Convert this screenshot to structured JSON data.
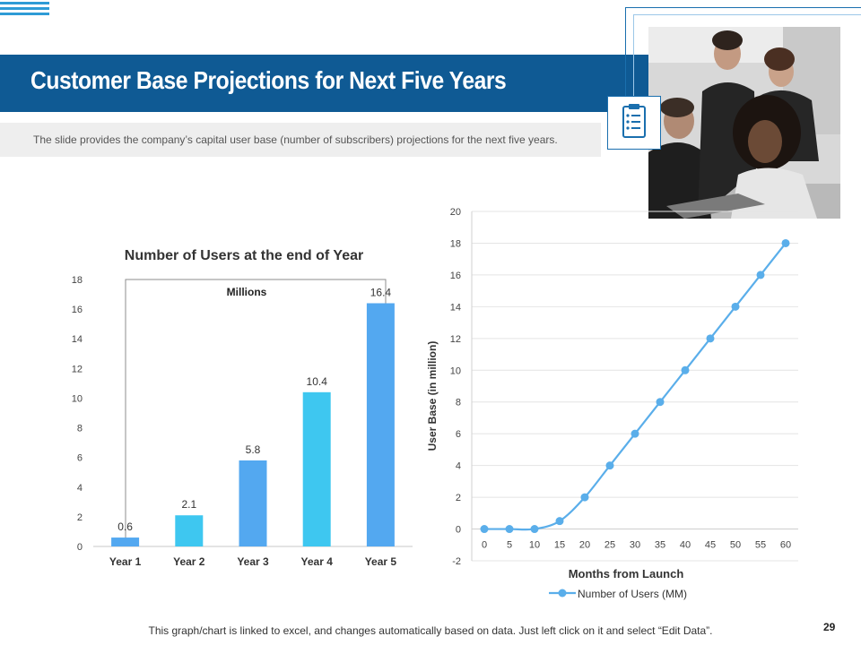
{
  "slide": {
    "title": "Customer Base Projections for Next Five Years",
    "subtitle": "The slide provides the company’s capital user base (number  of subscribers)  projections for the next five years.",
    "footer": "This graph/chart is linked to excel, and changes automatically based on data. Just left click on it and select “Edit Data”.",
    "page_number": "29",
    "icons": {
      "clipboard": "clipboard-icon"
    },
    "colors": {
      "title_bar": "#0f5a94",
      "accent": "#2e9bd6",
      "bar_blue": "#53a8f0",
      "bar_cyan": "#3ec7f0",
      "line": "#5aaeea"
    }
  },
  "chart_data": [
    {
      "type": "bar",
      "title": "Number of Users at the end of Year",
      "annotation": "Millions",
      "categories": [
        "Year 1",
        "Year 2",
        "Year 3",
        "Year 4",
        "Year 5"
      ],
      "values": [
        0.6,
        2.1,
        5.8,
        10.4,
        16.4
      ],
      "data_labels": [
        "0.6",
        "2.1",
        "5.8",
        "10.4",
        "16.4"
      ],
      "ylim": [
        0,
        18
      ],
      "yticks": [
        "0",
        "2",
        "4",
        "6",
        "8",
        "10",
        "12",
        "14",
        "16",
        "18"
      ],
      "grid": false,
      "bar_colors": [
        "#53a8f0",
        "#3ec7f0",
        "#53a8f0",
        "#3ec7f0",
        "#53a8f0"
      ]
    },
    {
      "type": "line",
      "xlabel": "Months from Launch",
      "ylabel": "User Base (in million)",
      "x": [
        0,
        5,
        10,
        15,
        20,
        25,
        30,
        35,
        40,
        45,
        50,
        55,
        60
      ],
      "xticks": [
        "0",
        "5",
        "10",
        "15",
        "20",
        "25",
        "30",
        "35",
        "40",
        "45",
        "50",
        "55",
        "60"
      ],
      "series": [
        {
          "name": "Number of Users (MM)",
          "values": [
            0,
            0,
            0,
            0.5,
            2,
            4,
            6,
            8,
            10,
            12,
            14,
            16,
            18
          ]
        }
      ],
      "ylim": [
        -2,
        20
      ],
      "yticks": [
        "-2",
        "0",
        "2",
        "4",
        "6",
        "8",
        "10",
        "12",
        "14",
        "16",
        "18",
        "20"
      ],
      "grid": true,
      "legend": "bottom",
      "color": "#5aaeea"
    }
  ]
}
